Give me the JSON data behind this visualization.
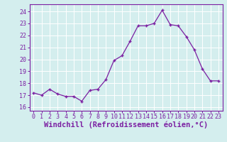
{
  "x": [
    0,
    1,
    2,
    3,
    4,
    5,
    6,
    7,
    8,
    9,
    10,
    11,
    12,
    13,
    14,
    15,
    16,
    17,
    18,
    19,
    20,
    21,
    22,
    23
  ],
  "y": [
    17.2,
    17.0,
    17.5,
    17.1,
    16.9,
    16.9,
    16.5,
    17.4,
    17.5,
    18.3,
    19.9,
    20.3,
    21.5,
    22.8,
    22.8,
    23.0,
    24.1,
    22.9,
    22.8,
    21.9,
    20.8,
    19.2,
    18.2,
    18.2
  ],
  "line_color": "#7b1fa2",
  "marker": "P",
  "marker_size": 3,
  "bg_color": "#d4eeee",
  "grid_color": "#ffffff",
  "xlabel": "Windchill (Refroidissement éolien,°C)",
  "xlim": [
    -0.5,
    23.5
  ],
  "ylim": [
    15.7,
    24.6
  ],
  "yticks": [
    16,
    17,
    18,
    19,
    20,
    21,
    22,
    23,
    24
  ],
  "xticks": [
    0,
    1,
    2,
    3,
    4,
    5,
    6,
    7,
    8,
    9,
    10,
    11,
    12,
    13,
    14,
    15,
    16,
    17,
    18,
    19,
    20,
    21,
    22,
    23
  ],
  "font_color": "#7b1fa2",
  "tick_fontsize": 6.0,
  "label_fontsize": 7.5
}
